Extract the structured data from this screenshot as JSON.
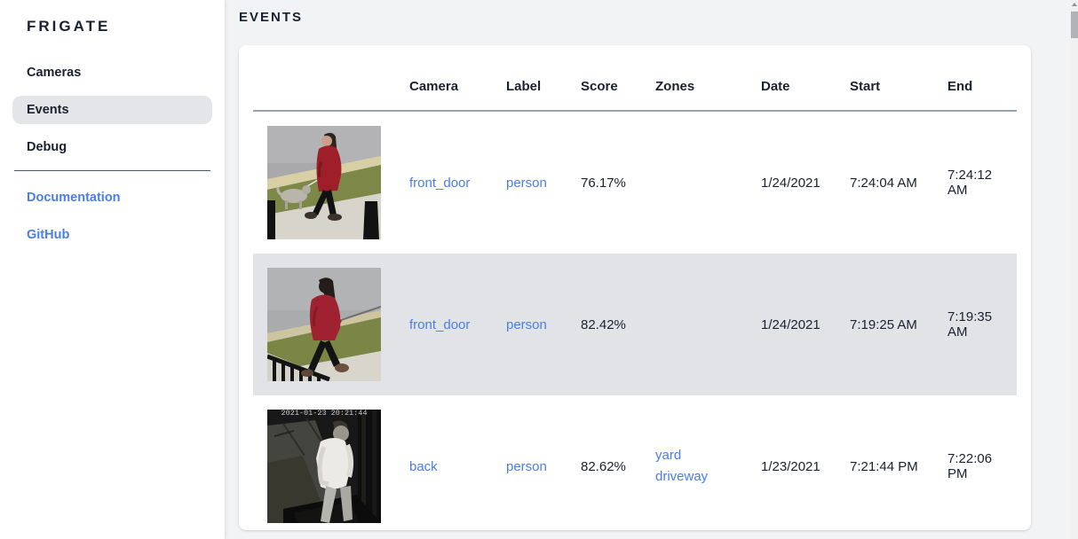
{
  "app": {
    "title": "FRIGATE"
  },
  "sidebar": {
    "items": [
      {
        "label": "Cameras",
        "selected": false
      },
      {
        "label": "Events",
        "selected": true
      },
      {
        "label": "Debug",
        "selected": false
      }
    ],
    "links": [
      {
        "label": "Documentation"
      },
      {
        "label": "GitHub"
      }
    ]
  },
  "page": {
    "title": "EVENTS"
  },
  "table": {
    "columns": [
      "Camera",
      "Label",
      "Score",
      "Zones",
      "Date",
      "Start",
      "End"
    ],
    "rows": [
      {
        "thumbnail": "woman-dog-day",
        "thumbnail_description": "woman in red coat walking gray dog on sidewalk, daytime color camera",
        "camera": "front_door",
        "label": "person",
        "score": "76.17%",
        "zones": [],
        "date": "1/24/2021",
        "start": "7:24:04 AM",
        "end": "7:24:12 AM",
        "highlighted": false
      },
      {
        "thumbnail": "woman-red-day",
        "thumbnail_description": "woman in red hooded jacket holding leash near black railing, daytime color camera",
        "camera": "front_door",
        "label": "person",
        "score": "82.42%",
        "zones": [],
        "date": "1/24/2021",
        "start": "7:19:25 AM",
        "end": "7:19:35 AM",
        "highlighted": true
      },
      {
        "thumbnail": "man-night",
        "thumbnail_description": "man in white long-sleeve shirt, night infrared black-and-white camera",
        "thumbnail_timestamp": "2021-01-23 20:21:44",
        "camera": "back",
        "label": "person",
        "score": "82.62%",
        "zones": [
          "yard",
          "driveway"
        ],
        "date": "1/23/2021",
        "start": "7:21:44 PM",
        "end": "7:22:06 PM",
        "highlighted": false
      }
    ]
  },
  "colors": {
    "link": "#4a7de9",
    "text_dark": "#1a212e",
    "bg_main": "#f2f3f5",
    "bg_card": "#ffffff",
    "row_highlight": "#e2e3e6",
    "nav_selected": "#e4e5e8",
    "divider_sidebar": "#4b5563",
    "divider_table": "#9aa2b1"
  }
}
